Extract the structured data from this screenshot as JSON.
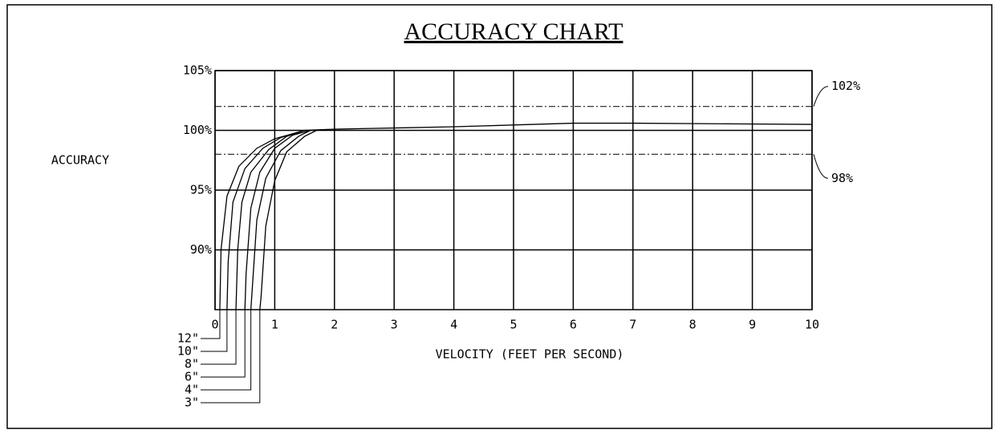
{
  "chart_data": {
    "type": "line",
    "title": "ACCURACY CHART",
    "y_label": "ACCURACY",
    "x_label": "VELOCITY (FEET PER SECOND)",
    "xlim": [
      0,
      10
    ],
    "ylim": [
      85,
      105
    ],
    "xticks": [
      0,
      1,
      2,
      3,
      4,
      5,
      6,
      7,
      8,
      9,
      10
    ],
    "yticks": [
      {
        "value": 90,
        "label": "90%"
      },
      {
        "value": 95,
        "label": "95%"
      },
      {
        "value": 100,
        "label": "100%"
      },
      {
        "value": 105,
        "label": "105%"
      }
    ],
    "grid": true,
    "reference_lines": [
      {
        "value": 102,
        "label": "102%"
      },
      {
        "value": 98,
        "label": "98%"
      }
    ],
    "series": [
      {
        "name": "12\"",
        "color": "#000000",
        "x": [
          0.08,
          0.1,
          0.2,
          0.4,
          0.7,
          1,
          1.5,
          2,
          4,
          6,
          7,
          10
        ],
        "values": [
          85,
          90,
          94.5,
          97,
          98.5,
          99.3,
          100,
          100.1,
          100.3,
          100.6,
          100.6,
          100.5
        ]
      },
      {
        "name": "10\"",
        "color": "#000000",
        "x": [
          0.2,
          0.22,
          0.3,
          0.5,
          0.8,
          1.1,
          1.5
        ],
        "values": [
          85,
          89,
          94,
          96.8,
          98.5,
          99.4,
          100
        ]
      },
      {
        "name": "8\"",
        "color": "#000000",
        "x": [
          0.35,
          0.38,
          0.45,
          0.6,
          0.9,
          1.2,
          1.5
        ],
        "values": [
          85,
          90,
          94,
          96.5,
          98.4,
          99.5,
          100
        ]
      },
      {
        "name": "6\"",
        "color": "#000000",
        "x": [
          0.5,
          0.52,
          0.6,
          0.75,
          1,
          1.3,
          1.6
        ],
        "values": [
          85,
          88,
          93.5,
          96.5,
          98.5,
          99.6,
          100
        ]
      },
      {
        "name": "4\"",
        "color": "#000000",
        "x": [
          0.6,
          0.62,
          0.7,
          0.85,
          1.1,
          1.4,
          1.6
        ],
        "values": [
          85,
          86.5,
          92.5,
          96,
          98.3,
          99.5,
          100
        ]
      },
      {
        "name": "3\"",
        "color": "#000000",
        "x": [
          0.75,
          0.77,
          0.85,
          1,
          1.2,
          1.5,
          1.7
        ],
        "values": [
          85,
          86,
          92,
          95.8,
          98.2,
          99.5,
          100
        ]
      }
    ]
  }
}
